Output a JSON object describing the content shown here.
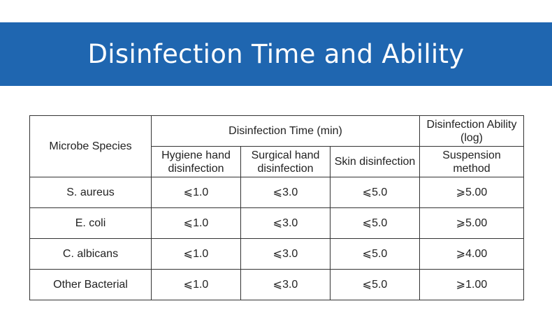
{
  "banner": {
    "title": "Disinfection Time and Ability",
    "background": "#1f66b0"
  },
  "table": {
    "species_header": "Microbe Species",
    "time_header": "Disinfection Time (min)",
    "ability_header": "Disinfection Ability (log)",
    "subheaders": {
      "hygiene": "Hygiene hand disinfection",
      "surgical": "Surgical hand disinfection",
      "skin": "Skin disinfection",
      "suspension": "Suspension method"
    },
    "rows": [
      {
        "species": "S. aureus",
        "hygiene": "⩽1.0",
        "surgical": "⩽3.0",
        "skin": "⩽5.0",
        "ability": "⩾5.00"
      },
      {
        "species": "E. coli",
        "hygiene": "⩽1.0",
        "surgical": "⩽3.0",
        "skin": "⩽5.0",
        "ability": "⩾5.00"
      },
      {
        "species": "C. albicans",
        "hygiene": "⩽1.0",
        "surgical": "⩽3.0",
        "skin": "⩽5.0",
        "ability": "⩾4.00"
      },
      {
        "species": "Other Bacterial",
        "hygiene": "⩽1.0",
        "surgical": "⩽3.0",
        "skin": "⩽5.0",
        "ability": "⩾1.00"
      }
    ]
  }
}
